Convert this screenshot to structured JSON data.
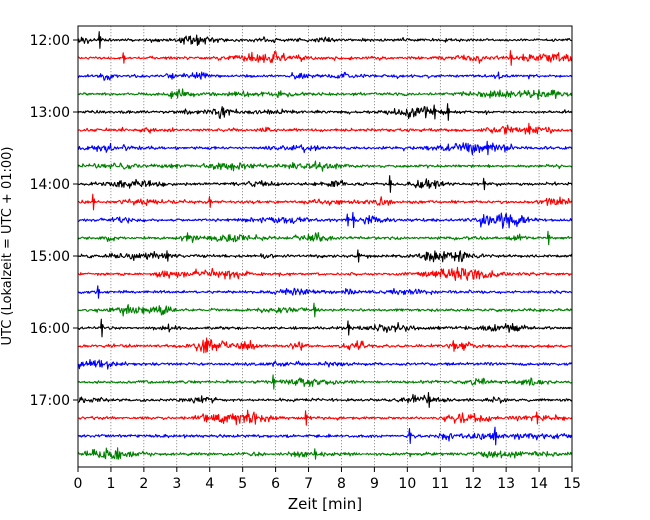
{
  "chart_data": {
    "type": "line",
    "title": "",
    "xlabel": "Zeit  [min]",
    "ylabel": "UTC (Lokalzeit = UTC + 01:00)",
    "xlim": [
      0,
      15
    ],
    "x_ticks": [
      "0",
      "1",
      "2",
      "3",
      "4",
      "5",
      "6",
      "7",
      "8",
      "9",
      "10",
      "11",
      "12",
      "13",
      "14",
      "15"
    ],
    "y_tick_labels": [
      "12:00",
      "13:00",
      "14:00",
      "15:00",
      "16:00",
      "17:00"
    ],
    "grid": "vertical dotted at each minute",
    "trace_colors": [
      "#000000",
      "#ff0000",
      "#0000ff",
      "#008000"
    ],
    "traces": [
      {
        "start": "12:00"
      },
      {
        "start": "12:15"
      },
      {
        "start": "12:30"
      },
      {
        "start": "12:45"
      },
      {
        "start": "13:00"
      },
      {
        "start": "13:15"
      },
      {
        "start": "13:30"
      },
      {
        "start": "13:45"
      },
      {
        "start": "14:00"
      },
      {
        "start": "14:15"
      },
      {
        "start": "14:30"
      },
      {
        "start": "14:45"
      },
      {
        "start": "15:00"
      },
      {
        "start": "15:15"
      },
      {
        "start": "15:30"
      },
      {
        "start": "15:45"
      },
      {
        "start": "16:00"
      },
      {
        "start": "16:15"
      },
      {
        "start": "16:30"
      },
      {
        "start": "16:45"
      },
      {
        "start": "17:00"
      },
      {
        "start": "17:15"
      },
      {
        "start": "17:30"
      },
      {
        "start": "17:45"
      }
    ]
  }
}
